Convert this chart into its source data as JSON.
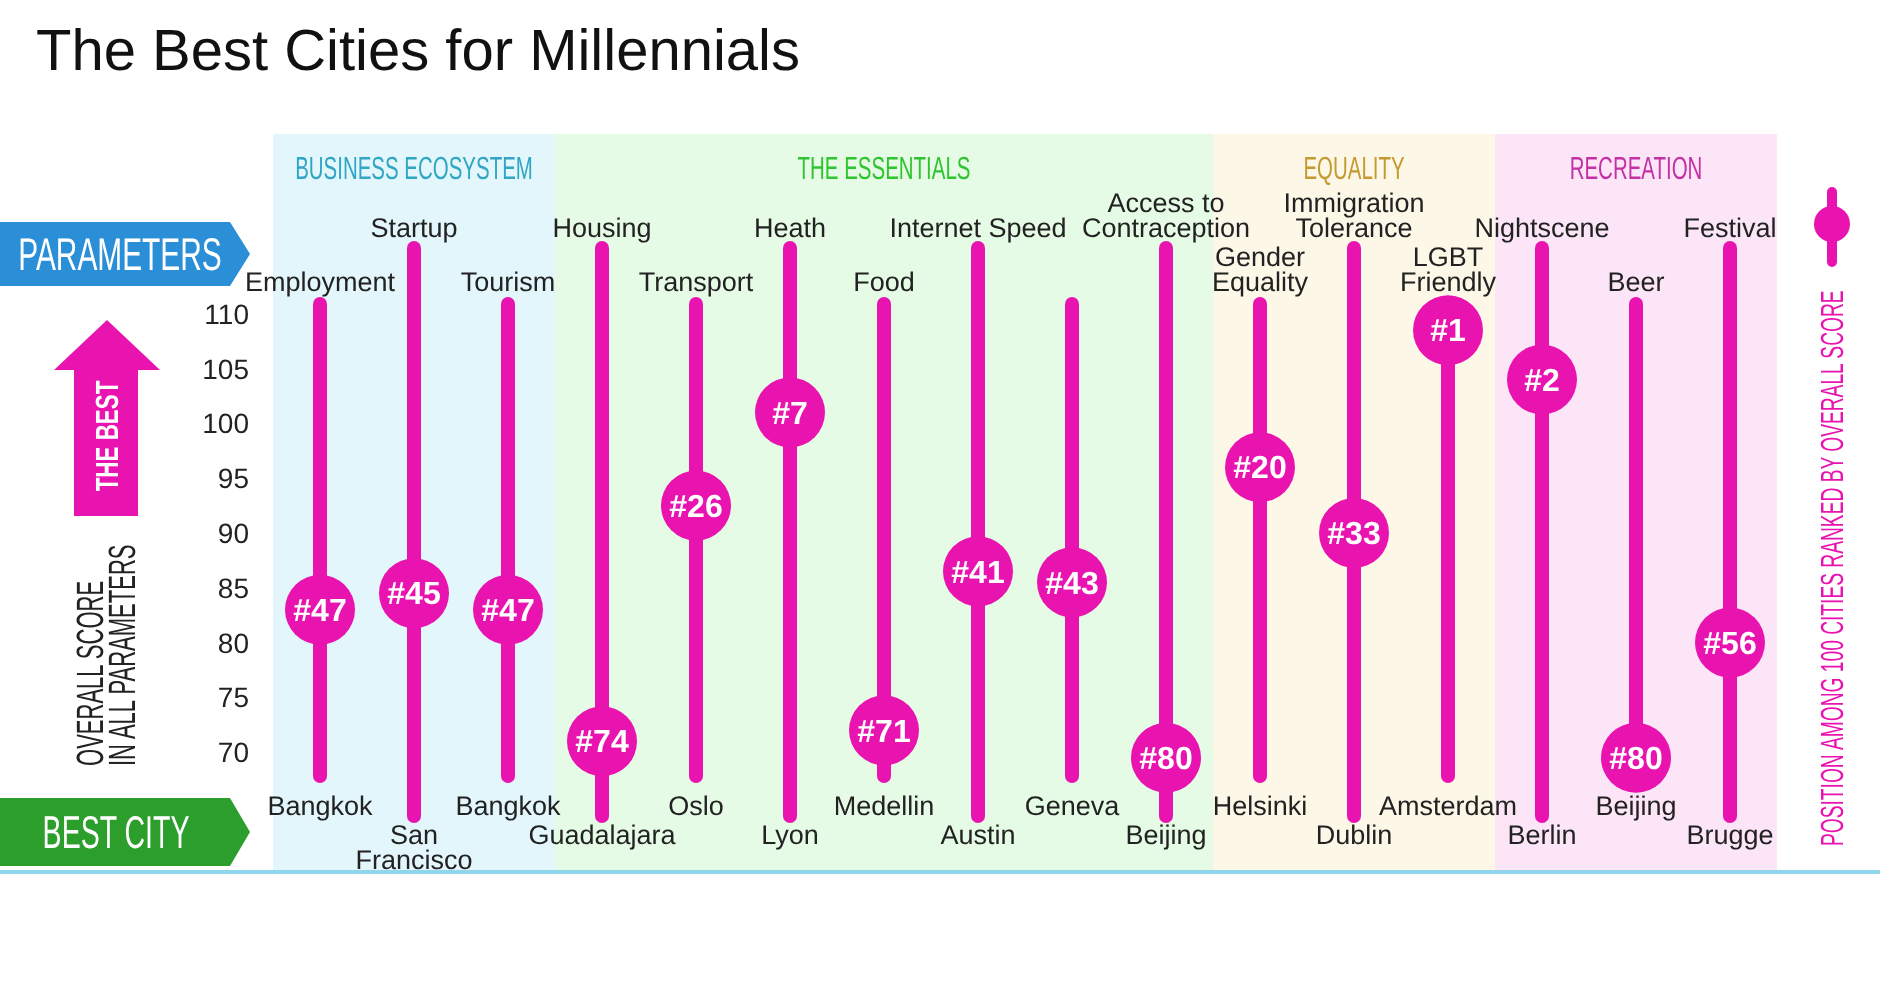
{
  "chart_data": {
    "type": "scatter",
    "title": "The Best Cities for Millennials",
    "ylabel": "OVERALL SCORE\nIN ALL PARAMETERS",
    "categories": [
      "Employment",
      "Startup",
      "Tourism",
      "Housing",
      "Transport",
      "Heath",
      "Food",
      "Internet Speed",
      null,
      "Access to\nContraception",
      "Gender\nEquality",
      "Immigration\nTolerance",
      "LGBT\nFriendly",
      "Nightscene",
      "Beer",
      "Festival"
    ],
    "values": [
      83,
      84.5,
      83,
      71,
      92.5,
      101,
      72,
      86.5,
      85.5,
      69.5,
      96,
      90,
      108.5,
      104,
      69.5,
      80
    ],
    "color": "#e914b0",
    "marker": "circle",
    "ylim": [
      64,
      116
    ],
    "yticks": [
      70,
      75,
      80,
      85,
      90,
      95,
      100,
      105,
      110
    ],
    "ref_lines": [
      {
        "axis": "x",
        "value": "Employment",
        "color": "#e914b0"
      },
      {
        "axis": "x",
        "value": "Startup",
        "color": "#e914b0"
      },
      {
        "axis": "x",
        "value": "Tourism",
        "color": "#e914b0"
      },
      {
        "axis": "x",
        "value": "Housing",
        "color": "#e914b0"
      },
      {
        "axis": "x",
        "value": "Transport",
        "color": "#e914b0"
      },
      {
        "axis": "x",
        "value": "Heath",
        "color": "#e914b0"
      },
      {
        "axis": "x",
        "value": "Food",
        "color": "#e914b0"
      },
      {
        "axis": "x",
        "value": "Internet Speed",
        "color": "#e914b0"
      },
      {
        "axis": "x",
        "color": "#e914b0"
      },
      {
        "axis": "x",
        "value": "Access to\nContraception",
        "color": "#e914b0"
      },
      {
        "axis": "x",
        "value": "Gender\nEquality",
        "color": "#e914b0"
      },
      {
        "axis": "x",
        "value": "Immigration\nTolerance",
        "color": "#e914b0"
      },
      {
        "axis": "x",
        "value": "LGBT\nFriendly",
        "color": "#e914b0"
      },
      {
        "axis": "x",
        "value": "Nightscene",
        "color": "#e914b0"
      },
      {
        "axis": "x",
        "value": "Beer",
        "color": "#e914b0"
      },
      {
        "axis": "x",
        "value": "Festival",
        "color": "#e914b0"
      }
    ],
    "bands": [
      {
        "axis": "x",
        "from": "Employment",
        "to": "Tourism",
        "label": "BUSINESS ECOSYSTEM",
        "color": "#e2f6fb"
      },
      {
        "axis": "x",
        "from": "Housing",
        "to": "Access to\nContraception",
        "label": "THE ESSENTIALS",
        "color": "#e5fbe5"
      },
      {
        "axis": "x",
        "from": "Gender\nEquality",
        "to": "LGBT\nFriendly",
        "label": "EQUALITY",
        "color": "#fdf7e8"
      },
      {
        "axis": "x",
        "from": "Nightscene",
        "to": "Festival",
        "label": "RECREATION",
        "color": "#fde5f8"
      }
    ],
    "annotations": [
      "PARAMETERS",
      "BEST CITY",
      "THE BEST",
      "POSITION AMONG 100 CITIES RANKED BY OVERALL SCORE",
      "Bangkok",
      "San\nFrancisco",
      "Bangkok",
      "Guadalajara",
      "Oslo",
      "Lyon",
      "Medellin",
      "Austin",
      "Geneva",
      "Beijing",
      "Helsinki",
      "Dublin",
      "Amsterdam",
      "Berlin",
      "Beijing",
      "Brugge",
      {
        "text": "#47",
        "x": "Employment",
        "y": 83
      },
      {
        "text": "#45",
        "x": "Startup",
        "y": 84.5
      },
      {
        "text": "#47",
        "x": "Tourism",
        "y": 83
      },
      {
        "text": "#74",
        "x": "Housing",
        "y": 71
      },
      {
        "text": "#26",
        "x": "Transport",
        "y": 92.5
      },
      {
        "text": "#7",
        "x": "Heath",
        "y": 101
      },
      {
        "text": "#71",
        "x": "Food",
        "y": 72
      },
      {
        "text": "#41",
        "x": "Internet Speed",
        "y": 86.5
      },
      {
        "text": "#43",
        "y": 85.5
      },
      {
        "text": "#80",
        "x": "Access to\nContraception",
        "y": 69.5
      },
      {
        "text": "#20",
        "x": "Gender\nEquality",
        "y": 96
      },
      {
        "text": "#33",
        "x": "Immigration\nTolerance",
        "y": 90
      },
      {
        "text": "#1",
        "x": "LGBT\nFriendly",
        "y": 108.5
      },
      {
        "text": "#2",
        "x": "Nightscene",
        "y": 104
      },
      {
        "text": "#80",
        "x": "Beer",
        "y": 69.5
      },
      {
        "text": "#56",
        "x": "Festival",
        "y": 80
      }
    ]
  }
}
